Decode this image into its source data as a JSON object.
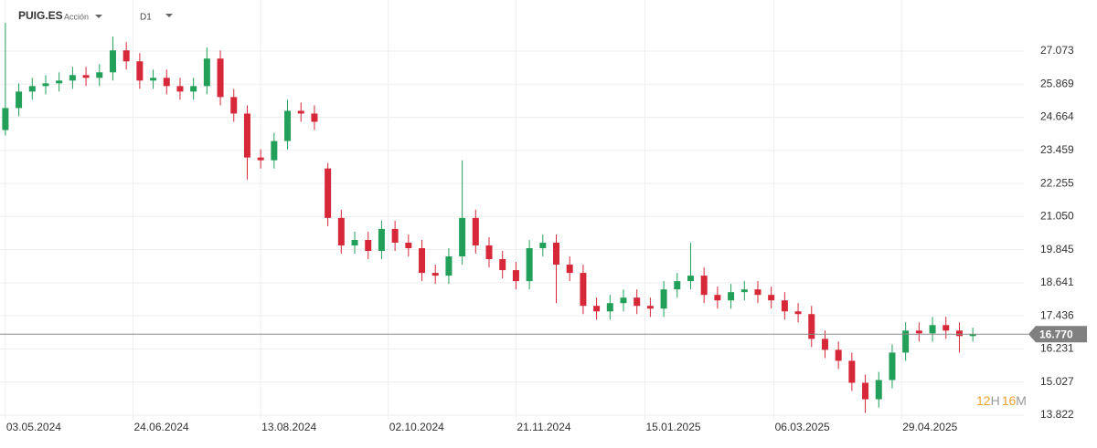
{
  "chart_data": {
    "type": "candlestick",
    "title": "PUIG.ES",
    "subtitle": "Acción",
    "timeframe": "D1",
    "up_color": "#22a05a",
    "down_color": "#d62839",
    "open": [
      24.2,
      25.0,
      25.6,
      25.8,
      25.9,
      26.0,
      26.2,
      26.1,
      26.3,
      27.1,
      26.7,
      26.0,
      26.1,
      25.8,
      25.6,
      25.8,
      26.8,
      25.4,
      24.8,
      23.2,
      23.1,
      23.8,
      24.9,
      24.8,
      22.8,
      21.0,
      20.0,
      20.2,
      19.8,
      20.6,
      20.1,
      19.9,
      19.0,
      18.9,
      19.6,
      21.0,
      20.0,
      19.5,
      19.1,
      18.7,
      19.9,
      20.1,
      19.3,
      19.0,
      17.8,
      17.6,
      17.9,
      18.1,
      17.8,
      17.7,
      18.4,
      18.7,
      18.9,
      18.2,
      18.0,
      18.3,
      18.4,
      18.2,
      18.0,
      17.6,
      17.5,
      16.6,
      16.2,
      15.8,
      15.0,
      14.4,
      15.1,
      16.1,
      16.9,
      16.8,
      17.1,
      16.9,
      16.7
    ],
    "high": [
      28.1,
      25.9,
      26.1,
      26.2,
      26.3,
      26.5,
      26.5,
      26.6,
      27.6,
      27.4,
      27.0,
      26.4,
      26.4,
      26.1,
      26.1,
      27.2,
      27.1,
      25.7,
      25.1,
      23.5,
      24.1,
      25.3,
      25.2,
      25.1,
      23.0,
      21.3,
      20.5,
      20.5,
      20.9,
      20.9,
      20.4,
      20.2,
      19.3,
      19.9,
      23.1,
      21.3,
      20.3,
      19.8,
      19.4,
      20.2,
      20.4,
      20.4,
      19.6,
      19.3,
      18.1,
      18.2,
      18.4,
      18.4,
      18.1,
      18.7,
      19.0,
      20.1,
      19.2,
      18.5,
      18.6,
      18.7,
      18.7,
      18.5,
      18.3,
      17.9,
      17.8,
      16.9,
      16.5,
      16.1,
      15.3,
      15.4,
      16.4,
      17.2,
      17.2,
      17.4,
      17.4,
      17.2,
      17.0
    ],
    "low": [
      24.0,
      24.7,
      25.3,
      25.5,
      25.6,
      25.7,
      25.8,
      25.8,
      26.0,
      26.4,
      25.7,
      25.7,
      25.5,
      25.3,
      25.3,
      25.5,
      25.1,
      24.5,
      22.4,
      22.8,
      22.8,
      23.5,
      24.5,
      24.2,
      20.7,
      19.7,
      19.7,
      19.5,
      19.5,
      19.8,
      19.6,
      18.7,
      18.6,
      18.6,
      19.3,
      19.7,
      19.2,
      18.8,
      18.4,
      18.4,
      19.6,
      17.9,
      18.7,
      17.5,
      17.3,
      17.3,
      17.6,
      17.5,
      17.4,
      17.4,
      18.1,
      18.4,
      17.9,
      17.7,
      17.7,
      18.0,
      17.9,
      17.7,
      17.3,
      17.2,
      16.3,
      15.9,
      15.5,
      14.7,
      13.9,
      14.1,
      14.8,
      15.8,
      16.5,
      16.5,
      16.6,
      16.1,
      16.5
    ],
    "close": [
      25.0,
      25.6,
      25.8,
      25.9,
      26.0,
      26.2,
      26.1,
      26.3,
      27.1,
      26.7,
      26.0,
      26.1,
      25.8,
      25.6,
      25.8,
      26.8,
      25.4,
      24.8,
      23.2,
      23.1,
      23.8,
      24.9,
      24.8,
      24.5,
      21.0,
      20.0,
      20.2,
      19.8,
      20.6,
      20.1,
      19.9,
      19.0,
      18.9,
      19.6,
      21.0,
      20.0,
      19.5,
      19.1,
      18.7,
      19.9,
      20.1,
      19.3,
      19.0,
      17.8,
      17.6,
      17.9,
      18.1,
      17.8,
      17.7,
      18.4,
      18.7,
      18.9,
      18.2,
      18.0,
      18.3,
      18.4,
      18.2,
      18.0,
      17.6,
      17.5,
      16.6,
      16.2,
      15.8,
      15.0,
      14.4,
      15.1,
      16.1,
      16.9,
      16.8,
      17.1,
      16.9,
      16.7,
      16.77
    ],
    "last_price": 16.77,
    "last_price_label": "16.770",
    "xlim": [
      -0.4,
      75.8
    ],
    "xticks": [
      {
        "value": 0,
        "label": "03.05.2024"
      },
      {
        "value": 9.5,
        "label": "24.06.2024"
      },
      {
        "value": 19,
        "label": "13.08.2024"
      },
      {
        "value": 28.5,
        "label": "02.10.2024"
      },
      {
        "value": 38,
        "label": "21.11.2024"
      },
      {
        "value": 47.6,
        "label": "15.01.2025"
      },
      {
        "value": 57.2,
        "label": "06.03.2025"
      },
      {
        "value": 66.7,
        "label": "29.04.2025"
      }
    ],
    "ylim": [
      13.656,
      28.933
    ],
    "yticks": [
      27.073,
      25.869,
      24.664,
      23.459,
      22.255,
      {
        "value": 21.05,
        "label": "21.050"
      },
      19.845,
      18.641,
      17.436,
      16.231,
      15.027,
      13.822
    ],
    "grid": true,
    "countdown": [
      "12",
      "H",
      "16",
      "M"
    ]
  }
}
